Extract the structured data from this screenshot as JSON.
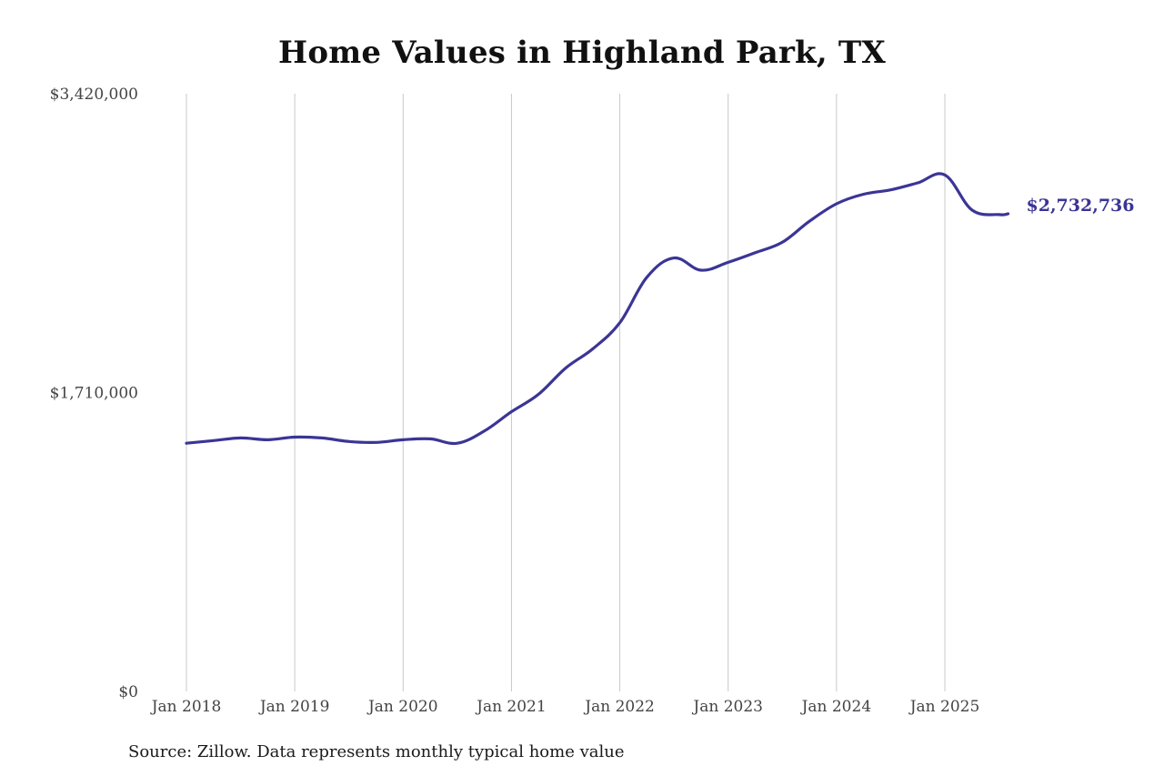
{
  "chart_data": {
    "type": "line",
    "title": "Home Values in Highland Park, TX",
    "source": "Source: Zillow. Data represents monthly typical home value",
    "line_color": "#3b3596",
    "grid_color": "#c8c8c8",
    "ylim": [
      0,
      3420000
    ],
    "y_ticks": [
      {
        "value": 0,
        "label": "$0"
      },
      {
        "value": 1710000,
        "label": "$1,710,000"
      },
      {
        "value": 3420000,
        "label": "$3,420,000"
      }
    ],
    "x_ticks": [
      {
        "value": "2018-01",
        "label": "Jan 2018"
      },
      {
        "value": "2019-01",
        "label": "Jan 2019"
      },
      {
        "value": "2020-01",
        "label": "Jan 2020"
      },
      {
        "value": "2021-01",
        "label": "Jan 2021"
      },
      {
        "value": "2022-01",
        "label": "Jan 2022"
      },
      {
        "value": "2023-01",
        "label": "Jan 2023"
      },
      {
        "value": "2024-01",
        "label": "Jan 2024"
      },
      {
        "value": "2025-01",
        "label": "Jan 2025"
      }
    ],
    "grid": "vertical",
    "end_label": "$2,732,736",
    "series": [
      {
        "x": [
          "2018-01",
          "2018-04",
          "2018-07",
          "2018-10",
          "2019-01",
          "2019-04",
          "2019-07",
          "2019-10",
          "2020-01",
          "2020-04",
          "2020-07",
          "2020-10",
          "2021-01",
          "2021-04",
          "2021-07",
          "2021-10",
          "2022-01",
          "2022-04",
          "2022-07",
          "2022-10",
          "2023-01",
          "2023-04",
          "2023-07",
          "2023-10",
          "2024-01",
          "2024-04",
          "2024-07",
          "2024-10",
          "2025-01",
          "2025-04",
          "2025-07",
          "2025-08"
        ],
        "values": [
          1420000,
          1435000,
          1450000,
          1440000,
          1455000,
          1450000,
          1430000,
          1425000,
          1440000,
          1445000,
          1420000,
          1490000,
          1600000,
          1700000,
          1850000,
          1960000,
          2110000,
          2370000,
          2480000,
          2410000,
          2455000,
          2510000,
          2570000,
          2690000,
          2790000,
          2845000,
          2870000,
          2910000,
          2955000,
          2755000,
          2728000,
          2732736
        ]
      }
    ]
  }
}
